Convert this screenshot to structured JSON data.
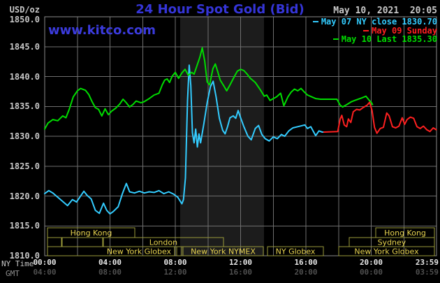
{
  "header": {
    "unit_label": "USD/oz",
    "title": "24 Hour Spot Gold (Bid)",
    "datetime": "May 10, 2021  20:05",
    "watermark": "www.kitco.com"
  },
  "legend": [
    {
      "label": "May 07 NY close 1830.70",
      "color": "#33ccff"
    },
    {
      "label": "May 09 Sunday",
      "color": "#ff2020"
    },
    {
      "label": "May 10 Last 1835.30",
      "color": "#00dd00"
    }
  ],
  "axes": {
    "ny_time_label": "NY Time",
    "gmt_label": "GMT",
    "y_ticks": [
      "1850.0",
      "1845.0",
      "1840.0",
      "1835.0",
      "1830.0",
      "1825.0",
      "1820.0",
      "1815.0",
      "1810.0"
    ],
    "x_ticks": [
      {
        "t": 0,
        "ny": "00:00",
        "gmt": "04:00"
      },
      {
        "t": 4,
        "ny": "04:00",
        "gmt": "08:00"
      },
      {
        "t": 8,
        "ny": "08:00",
        "gmt": "12:00"
      },
      {
        "t": 12,
        "ny": "12:00",
        "gmt": "16:00"
      },
      {
        "t": 16,
        "ny": "16:00",
        "gmt": "20:00"
      },
      {
        "t": 20,
        "ny": "20:00",
        "gmt": "00:00"
      },
      {
        "t": 23.983,
        "ny": "23:59",
        "gmt": "03:59",
        "align": "right"
      }
    ]
  },
  "colors": {
    "background": "#000000",
    "band": "#1c1c1c",
    "grid": "#6f6f6f",
    "border": "#8a8a8a",
    "session_border": "#9a9a3a",
    "session_text": "#e8d44f"
  },
  "chart_data": {
    "type": "line",
    "title": "24 Hour Spot Gold (Bid)",
    "xlabel": "NY Time (hours)",
    "ylabel": "USD/oz",
    "xlim": [
      0,
      24
    ],
    "ylim": [
      1810,
      1850
    ],
    "grid": true,
    "x_gridlines": [
      2,
      4,
      6,
      8,
      10,
      12,
      14,
      16,
      18,
      20,
      22
    ],
    "y_gridlines": [
      1845,
      1840,
      1835,
      1830,
      1825,
      1820,
      1815
    ],
    "highlight_band": {
      "name": "New York NYMEX session",
      "from": 8.3,
      "to": 13.43
    },
    "series": [
      {
        "key": "may07",
        "name": "May 07 NY close 1830.70",
        "color": "#33ccff",
        "points": [
          [
            0.0,
            1820.4
          ],
          [
            0.25,
            1820.9
          ],
          [
            0.5,
            1820.5
          ],
          [
            0.8,
            1819.8
          ],
          [
            1.1,
            1819.1
          ],
          [
            1.4,
            1818.4
          ],
          [
            1.7,
            1819.4
          ],
          [
            1.95,
            1819.0
          ],
          [
            2.2,
            1820.0
          ],
          [
            2.4,
            1820.8
          ],
          [
            2.6,
            1820.1
          ],
          [
            2.85,
            1819.5
          ],
          [
            3.1,
            1817.6
          ],
          [
            3.35,
            1817.1
          ],
          [
            3.6,
            1818.8
          ],
          [
            3.8,
            1817.6
          ],
          [
            4.0,
            1817.0
          ],
          [
            4.2,
            1817.4
          ],
          [
            4.5,
            1818.2
          ],
          [
            4.75,
            1820.3
          ],
          [
            5.0,
            1822.1
          ],
          [
            5.2,
            1820.7
          ],
          [
            5.5,
            1820.5
          ],
          [
            5.8,
            1820.8
          ],
          [
            6.1,
            1820.5
          ],
          [
            6.4,
            1820.7
          ],
          [
            6.7,
            1820.6
          ],
          [
            7.0,
            1820.9
          ],
          [
            7.3,
            1820.4
          ],
          [
            7.6,
            1820.7
          ],
          [
            7.9,
            1820.3
          ],
          [
            8.15,
            1819.8
          ],
          [
            8.4,
            1818.7
          ],
          [
            8.5,
            1819.4
          ],
          [
            8.62,
            1823.0
          ],
          [
            8.75,
            1836.0
          ],
          [
            8.85,
            1841.9
          ],
          [
            8.95,
            1838.5
          ],
          [
            9.05,
            1830.6
          ],
          [
            9.15,
            1828.9
          ],
          [
            9.25,
            1831.2
          ],
          [
            9.35,
            1828.2
          ],
          [
            9.45,
            1830.4
          ],
          [
            9.55,
            1828.9
          ],
          [
            9.75,
            1832.1
          ],
          [
            9.95,
            1835.6
          ],
          [
            10.15,
            1838.3
          ],
          [
            10.32,
            1839.2
          ],
          [
            10.5,
            1836.6
          ],
          [
            10.7,
            1833.0
          ],
          [
            10.9,
            1831.0
          ],
          [
            11.05,
            1830.4
          ],
          [
            11.2,
            1831.6
          ],
          [
            11.35,
            1833.1
          ],
          [
            11.55,
            1833.4
          ],
          [
            11.7,
            1833.0
          ],
          [
            11.85,
            1834.3
          ],
          [
            12.0,
            1833.1
          ],
          [
            12.2,
            1831.6
          ],
          [
            12.45,
            1830.0
          ],
          [
            12.65,
            1829.4
          ],
          [
            12.9,
            1831.3
          ],
          [
            13.1,
            1831.8
          ],
          [
            13.3,
            1830.3
          ],
          [
            13.5,
            1829.6
          ],
          [
            13.75,
            1829.2
          ],
          [
            14.0,
            1829.9
          ],
          [
            14.25,
            1829.6
          ],
          [
            14.5,
            1830.3
          ],
          [
            14.7,
            1830.0
          ],
          [
            14.95,
            1830.9
          ],
          [
            15.2,
            1831.4
          ],
          [
            15.5,
            1831.6
          ],
          [
            15.93,
            1831.9
          ],
          [
            16.1,
            1831.3
          ],
          [
            16.3,
            1831.6
          ],
          [
            16.6,
            1830.1
          ],
          [
            16.8,
            1830.9
          ],
          [
            17.0,
            1830.7
          ],
          [
            17.1,
            1830.7
          ]
        ]
      },
      {
        "key": "may09",
        "name": "May 09 Sunday",
        "color": "#ff2020",
        "points": [
          [
            17.1,
            1830.7
          ],
          [
            17.95,
            1830.8
          ],
          [
            18.1,
            1832.9
          ],
          [
            18.2,
            1833.5
          ],
          [
            18.35,
            1831.9
          ],
          [
            18.5,
            1831.6
          ],
          [
            18.6,
            1832.9
          ],
          [
            18.75,
            1832.3
          ],
          [
            18.9,
            1834.1
          ],
          [
            19.1,
            1834.5
          ],
          [
            19.3,
            1834.4
          ],
          [
            19.5,
            1834.8
          ],
          [
            19.75,
            1835.2
          ],
          [
            19.9,
            1835.7
          ],
          [
            20.05,
            1834.3
          ],
          [
            20.2,
            1831.5
          ],
          [
            20.35,
            1830.5
          ],
          [
            20.55,
            1831.3
          ],
          [
            20.75,
            1831.5
          ],
          [
            20.95,
            1833.9
          ],
          [
            21.1,
            1833.4
          ],
          [
            21.3,
            1831.6
          ],
          [
            21.5,
            1831.4
          ],
          [
            21.7,
            1831.7
          ],
          [
            21.9,
            1833.1
          ],
          [
            22.05,
            1832.0
          ],
          [
            22.2,
            1832.8
          ],
          [
            22.4,
            1833.2
          ],
          [
            22.6,
            1833.0
          ],
          [
            22.8,
            1831.6
          ],
          [
            23.0,
            1831.3
          ],
          [
            23.2,
            1831.7
          ],
          [
            23.4,
            1831.1
          ],
          [
            23.6,
            1830.8
          ],
          [
            23.8,
            1831.4
          ],
          [
            23.98,
            1831.1
          ]
        ]
      },
      {
        "key": "may10",
        "name": "May 10 Last 1835.30",
        "color": "#00dd00",
        "points": [
          [
            0.0,
            1831.2
          ],
          [
            0.2,
            1832.2
          ],
          [
            0.5,
            1832.8
          ],
          [
            0.8,
            1832.6
          ],
          [
            1.1,
            1833.4
          ],
          [
            1.3,
            1833.1
          ],
          [
            1.5,
            1834.5
          ],
          [
            1.75,
            1836.6
          ],
          [
            2.0,
            1837.6
          ],
          [
            2.2,
            1838.0
          ],
          [
            2.5,
            1837.7
          ],
          [
            2.7,
            1837.0
          ],
          [
            2.9,
            1835.8
          ],
          [
            3.1,
            1834.8
          ],
          [
            3.3,
            1834.5
          ],
          [
            3.5,
            1833.4
          ],
          [
            3.7,
            1834.6
          ],
          [
            3.9,
            1833.6
          ],
          [
            4.1,
            1834.2
          ],
          [
            4.35,
            1834.7
          ],
          [
            4.6,
            1835.4
          ],
          [
            4.8,
            1836.2
          ],
          [
            5.0,
            1835.6
          ],
          [
            5.2,
            1834.9
          ],
          [
            5.4,
            1835.3
          ],
          [
            5.6,
            1835.9
          ],
          [
            5.9,
            1835.6
          ],
          [
            6.1,
            1835.8
          ],
          [
            6.4,
            1836.3
          ],
          [
            6.7,
            1836.9
          ],
          [
            7.0,
            1837.2
          ],
          [
            7.2,
            1838.6
          ],
          [
            7.35,
            1839.4
          ],
          [
            7.5,
            1839.6
          ],
          [
            7.65,
            1839.0
          ],
          [
            7.8,
            1840.0
          ],
          [
            8.0,
            1840.7
          ],
          [
            8.2,
            1839.7
          ],
          [
            8.4,
            1840.6
          ],
          [
            8.6,
            1841.2
          ],
          [
            8.8,
            1840.2
          ],
          [
            9.0,
            1840.7
          ],
          [
            9.15,
            1840.4
          ],
          [
            9.3,
            1841.6
          ],
          [
            9.5,
            1843.2
          ],
          [
            9.65,
            1844.8
          ],
          [
            9.8,
            1842.6
          ],
          [
            9.95,
            1839.1
          ],
          [
            10.1,
            1838.6
          ],
          [
            10.3,
            1841.3
          ],
          [
            10.45,
            1842.1
          ],
          [
            10.6,
            1840.8
          ],
          [
            10.75,
            1839.4
          ],
          [
            11.0,
            1838.3
          ],
          [
            11.15,
            1837.6
          ],
          [
            11.35,
            1838.6
          ],
          [
            11.6,
            1839.9
          ],
          [
            11.8,
            1840.9
          ],
          [
            12.0,
            1841.2
          ],
          [
            12.2,
            1841.0
          ],
          [
            12.4,
            1840.4
          ],
          [
            12.6,
            1839.7
          ],
          [
            12.9,
            1839.0
          ],
          [
            13.2,
            1837.8
          ],
          [
            13.45,
            1836.7
          ],
          [
            13.6,
            1836.9
          ],
          [
            13.8,
            1836.0
          ],
          [
            14.0,
            1836.3
          ],
          [
            14.2,
            1836.6
          ],
          [
            14.45,
            1837.2
          ],
          [
            14.65,
            1835.1
          ],
          [
            14.9,
            1836.6
          ],
          [
            15.1,
            1837.4
          ],
          [
            15.3,
            1837.9
          ],
          [
            15.5,
            1837.6
          ],
          [
            15.7,
            1838.0
          ],
          [
            15.9,
            1837.4
          ],
          [
            16.1,
            1836.9
          ],
          [
            16.35,
            1836.6
          ],
          [
            16.6,
            1836.3
          ],
          [
            16.9,
            1836.2
          ],
          [
            17.9,
            1836.2
          ],
          [
            18.1,
            1835.2
          ],
          [
            18.25,
            1834.9
          ],
          [
            18.5,
            1835.3
          ],
          [
            18.8,
            1835.8
          ],
          [
            19.1,
            1836.1
          ],
          [
            19.4,
            1836.4
          ],
          [
            19.68,
            1836.7
          ],
          [
            19.85,
            1836.1
          ],
          [
            20.0,
            1835.7
          ],
          [
            20.08,
            1835.3
          ]
        ]
      }
    ],
    "sessions": [
      {
        "row": 0,
        "from": 0.17,
        "to": 5.52,
        "label": "Hong Kong"
      },
      {
        "row": 0,
        "from": 20.28,
        "to": 23.87,
        "label": "Hong Kong"
      },
      {
        "row": 1,
        "from": 0.17,
        "to": 1.03,
        "label": ""
      },
      {
        "row": 1,
        "from": 1.07,
        "to": 3.55,
        "label": ""
      },
      {
        "row": 1,
        "from": 3.59,
        "to": 10.95,
        "label": "London"
      },
      {
        "row": 1,
        "from": 18.65,
        "to": 23.87,
        "label": "Sydney"
      },
      {
        "row": 2,
        "from": 0.17,
        "to": 7.96,
        "label": "New York Globex",
        "align": "right"
      },
      {
        "row": 2,
        "from": 8.09,
        "to": 8.39,
        "label": ""
      },
      {
        "row": 2,
        "from": 8.47,
        "to": 13.39,
        "label": "New York NYMEX"
      },
      {
        "row": 2,
        "from": 13.65,
        "to": 17.07,
        "label": "NY Globex"
      },
      {
        "row": 2,
        "from": 18.01,
        "to": 23.87,
        "label": "New York Globex"
      }
    ]
  }
}
